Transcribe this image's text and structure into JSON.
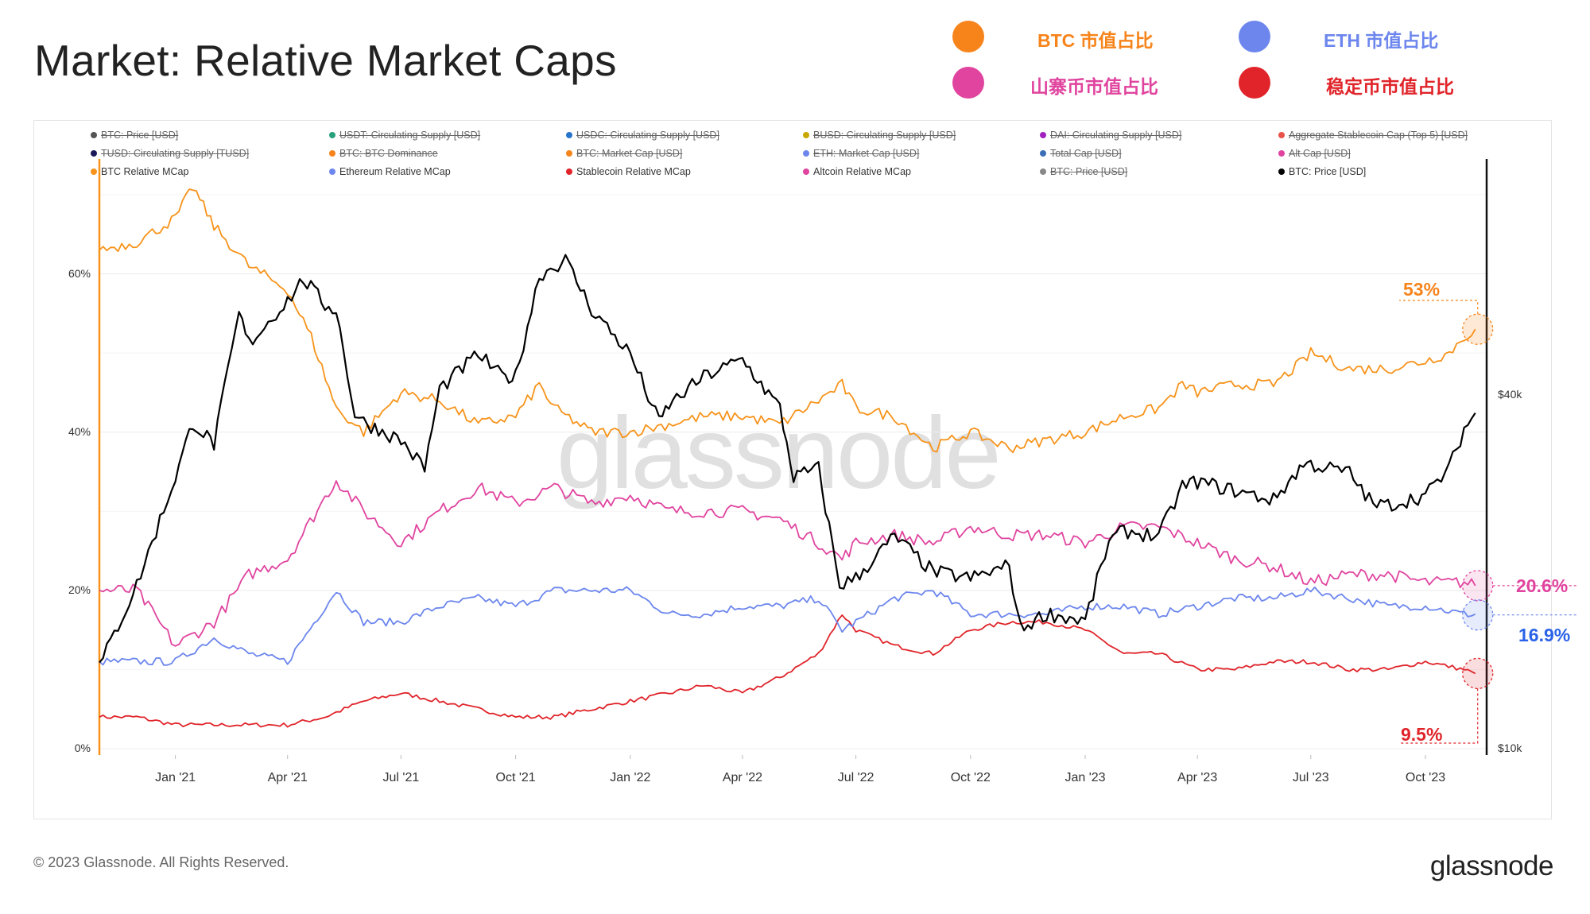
{
  "page": {
    "title": "Market: Relative Market Caps",
    "footer": "© 2023 Glassnode. All Rights Reserved.",
    "brand": "glassnode",
    "watermark": "glassnode"
  },
  "cn_legend": [
    {
      "label": "BTC 市值占比",
      "color": "#f7841b"
    },
    {
      "label": "ETH 市值占比",
      "color": "#6c86ed"
    },
    {
      "label": "山寨币市值占比",
      "color": "#e0449f"
    },
    {
      "label": "稳定币市值占比",
      "color": "#e0242a"
    }
  ],
  "legend": [
    {
      "label": "BTC: Price [USD]",
      "color": "#555555",
      "enabled": false
    },
    {
      "label": "USDT: Circulating Supply [USD]",
      "color": "#26a17b",
      "enabled": false
    },
    {
      "label": "USDC: Circulating Supply [USD]",
      "color": "#2775ca",
      "enabled": false
    },
    {
      "label": "BUSD: Circulating Supply [USD]",
      "color": "#c8a800",
      "enabled": false
    },
    {
      "label": "DAI: Circulating Supply [USD]",
      "color": "#a020c0",
      "enabled": false
    },
    {
      "label": "Aggregate Stablecoin Cap (Top 5) [USD]",
      "color": "#e8524a",
      "enabled": false
    },
    {
      "label": "TUSD: Circulating Supply [TUSD]",
      "color": "#1a1a5a",
      "enabled": false
    },
    {
      "label": "BTC: BTC Dominance",
      "color": "#f7841b",
      "enabled": false
    },
    {
      "label": "BTC: Market Cap [USD]",
      "color": "#f7841b",
      "enabled": false
    },
    {
      "label": "ETH: Market Cap [USD]",
      "color": "#6c86ed",
      "enabled": false
    },
    {
      "label": "Total Cap [USD]",
      "color": "#3a6fb7",
      "enabled": false
    },
    {
      "label": "Alt Cap [USD]",
      "color": "#e0449f",
      "enabled": false
    },
    {
      "label": "BTC Relative MCap",
      "color": "#f7931a",
      "enabled": true
    },
    {
      "label": "Ethereum Relative MCap",
      "color": "#6c86ed",
      "enabled": true
    },
    {
      "label": "Stablecoin Relative MCap",
      "color": "#e0242a",
      "enabled": true
    },
    {
      "label": "Altcoin Relative MCap",
      "color": "#e0449f",
      "enabled": true
    },
    {
      "label": "BTC: Price [USD]",
      "color": "#888888",
      "enabled": false
    },
    {
      "label": "BTC: Price [USD]",
      "color": "#000000",
      "enabled": true
    }
  ],
  "chart_data": {
    "type": "line",
    "x_tick_labels": [
      "Jan '21",
      "Apr '21",
      "Jul '21",
      "Oct '21",
      "Jan '22",
      "Apr '22",
      "Jul '22",
      "Oct '22",
      "Jan '23",
      "Apr '23",
      "Jul '23",
      "Oct '23"
    ],
    "y_tick_labels": [
      "0%",
      "20%",
      "40%",
      "60%"
    ],
    "ylim": [
      0,
      70
    ],
    "y2_tick_labels": [
      "$10k",
      "$40k"
    ],
    "y2_scale": "log",
    "y2lim": [
      10000,
      90000
    ],
    "grid": true,
    "legend_position": "top",
    "x_start": "2020-11-01",
    "series": [
      {
        "name": "BTC Relative MCap",
        "color": "#f7931a",
        "unit": "%",
        "x": [
          "2020-11-01",
          "2020-12-01",
          "2021-01-01",
          "2021-01-15",
          "2021-02-01",
          "2021-03-01",
          "2021-04-01",
          "2021-04-20",
          "2021-05-10",
          "2021-06-01",
          "2021-07-01",
          "2021-08-01",
          "2021-09-01",
          "2021-10-01",
          "2021-10-20",
          "2021-11-01",
          "2021-12-01",
          "2022-01-01",
          "2022-02-01",
          "2022-03-01",
          "2022-04-01",
          "2022-05-01",
          "2022-06-01",
          "2022-06-20",
          "2022-07-01",
          "2022-08-01",
          "2022-09-01",
          "2022-10-01",
          "2022-11-01",
          "2022-12-01",
          "2023-01-01",
          "2023-02-01",
          "2023-03-01",
          "2023-03-20",
          "2023-04-01",
          "2023-05-01",
          "2023-06-01",
          "2023-06-25",
          "2023-07-01",
          "2023-08-01",
          "2023-09-01",
          "2023-10-01",
          "2023-10-20",
          "2023-11-01",
          "2023-11-10"
        ],
        "y": [
          63,
          64,
          67,
          71,
          66,
          61,
          58,
          52,
          43,
          40,
          45,
          44,
          41,
          42,
          46,
          43,
          40,
          40,
          41,
          42,
          42,
          41,
          44,
          46,
          43,
          42,
          38,
          40,
          38,
          39,
          40,
          42,
          43,
          46,
          45,
          46,
          46,
          49,
          50,
          48,
          48,
          49,
          50,
          52,
          53
        ]
      },
      {
        "name": "Ethereum Relative MCap",
        "color": "#6c86ed",
        "unit": "%",
        "x": [
          "2020-11-01",
          "2020-12-01",
          "2021-01-01",
          "2021-02-01",
          "2021-03-01",
          "2021-04-01",
          "2021-05-10",
          "2021-06-01",
          "2021-07-01",
          "2021-08-01",
          "2021-09-01",
          "2021-10-01",
          "2021-11-01",
          "2021-12-01",
          "2022-01-01",
          "2022-02-01",
          "2022-03-01",
          "2022-04-01",
          "2022-05-01",
          "2022-06-01",
          "2022-06-20",
          "2022-07-01",
          "2022-08-01",
          "2022-09-01",
          "2022-10-01",
          "2022-11-01",
          "2022-12-01",
          "2023-01-01",
          "2023-02-01",
          "2023-03-01",
          "2023-04-01",
          "2023-05-01",
          "2023-06-01",
          "2023-07-01",
          "2023-08-01",
          "2023-09-01",
          "2023-10-01",
          "2023-11-01",
          "2023-11-10"
        ],
        "y": [
          11,
          11,
          11,
          14,
          12,
          11,
          20,
          16,
          16,
          18,
          19,
          18,
          20,
          20,
          20,
          17,
          17,
          18,
          18,
          19,
          15,
          16,
          19,
          20,
          17,
          17,
          17,
          18,
          18,
          17,
          18,
          19,
          19,
          20,
          19,
          18,
          18,
          17,
          17
        ]
      },
      {
        "name": "Stablecoin Relative MCap",
        "color": "#e0242a",
        "unit": "%",
        "x": [
          "2020-11-01",
          "2020-12-01",
          "2021-01-01",
          "2021-02-01",
          "2021-03-01",
          "2021-04-01",
          "2021-05-01",
          "2021-06-01",
          "2021-07-01",
          "2021-08-01",
          "2021-09-01",
          "2021-10-01",
          "2021-11-01",
          "2021-12-01",
          "2022-01-01",
          "2022-02-01",
          "2022-03-01",
          "2022-04-01",
          "2022-05-01",
          "2022-06-01",
          "2022-06-20",
          "2022-07-01",
          "2022-08-01",
          "2022-09-01",
          "2022-10-01",
          "2022-11-01",
          "2022-12-01",
          "2023-01-01",
          "2023-02-01",
          "2023-03-01",
          "2023-04-01",
          "2023-05-01",
          "2023-06-01",
          "2023-07-01",
          "2023-08-01",
          "2023-09-01",
          "2023-10-01",
          "2023-11-01",
          "2023-11-10"
        ],
        "y": [
          4,
          4,
          3,
          3,
          3,
          3,
          4,
          6,
          7,
          6,
          5,
          4,
          4,
          5,
          6,
          7,
          8,
          7,
          9,
          12,
          17,
          15,
          13,
          12,
          15,
          16,
          16,
          15,
          12,
          12,
          10,
          10,
          11,
          11,
          10,
          10,
          11,
          10,
          9.5
        ]
      },
      {
        "name": "Altcoin Relative MCap",
        "color": "#e0449f",
        "unit": "%",
        "x": [
          "2020-11-01",
          "2020-12-01",
          "2021-01-01",
          "2021-02-01",
          "2021-03-01",
          "2021-04-01",
          "2021-05-10",
          "2021-06-01",
          "2021-07-01",
          "2021-08-01",
          "2021-09-01",
          "2021-10-01",
          "2021-11-01",
          "2021-12-01",
          "2022-01-01",
          "2022-02-01",
          "2022-03-01",
          "2022-04-01",
          "2022-05-01",
          "2022-06-01",
          "2022-06-20",
          "2022-07-01",
          "2022-08-01",
          "2022-09-01",
          "2022-10-01",
          "2022-11-01",
          "2022-12-01",
          "2023-01-01",
          "2023-02-01",
          "2023-03-01",
          "2023-04-01",
          "2023-05-01",
          "2023-06-01",
          "2023-07-01",
          "2023-08-01",
          "2023-09-01",
          "2023-10-01",
          "2023-11-01",
          "2023-11-10"
        ],
        "y": [
          20,
          20,
          13,
          16,
          22,
          24,
          34,
          30,
          26,
          30,
          33,
          31,
          33,
          31,
          32,
          30,
          30,
          30,
          29,
          26,
          24,
          26,
          27,
          26,
          28,
          27,
          27,
          26,
          28,
          28,
          26,
          24,
          23,
          21,
          22,
          22,
          21,
          21,
          20.6
        ]
      },
      {
        "name": "BTC: Price [USD]",
        "color": "#000000",
        "unit": "USD",
        "axis": "right",
        "x": [
          "2020-11-01",
          "2020-12-01",
          "2021-01-01",
          "2021-01-15",
          "2021-02-01",
          "2021-02-21",
          "2021-03-01",
          "2021-04-01",
          "2021-04-14",
          "2021-05-01",
          "2021-05-10",
          "2021-05-25",
          "2021-06-01",
          "2021-07-01",
          "2021-07-20",
          "2021-08-01",
          "2021-09-01",
          "2021-09-20",
          "2021-10-01",
          "2021-10-20",
          "2021-11-10",
          "2021-12-01",
          "2022-01-01",
          "2022-01-24",
          "2022-02-01",
          "2022-03-01",
          "2022-04-01",
          "2022-05-01",
          "2022-05-12",
          "2022-06-01",
          "2022-06-18",
          "2022-07-01",
          "2022-08-01",
          "2022-09-01",
          "2022-10-01",
          "2022-11-01",
          "2022-11-10",
          "2022-12-01",
          "2023-01-01",
          "2023-01-20",
          "2023-02-01",
          "2023-03-01",
          "2023-03-20",
          "2023-04-01",
          "2023-05-01",
          "2023-06-01",
          "2023-06-25",
          "2023-07-01",
          "2023-08-01",
          "2023-08-20",
          "2023-09-01",
          "2023-10-01",
          "2023-10-20",
          "2023-11-01",
          "2023-11-10"
        ],
        "y": [
          13800,
          19000,
          29000,
          36000,
          33000,
          55000,
          49000,
          58000,
          63000,
          57000,
          56000,
          37000,
          36000,
          33500,
          30000,
          41000,
          47000,
          43000,
          43000,
          64000,
          68000,
          56000,
          47000,
          36000,
          38500,
          43000,
          46000,
          38000,
          29000,
          30000,
          19000,
          19500,
          23000,
          20000,
          19500,
          20500,
          16000,
          17000,
          16500,
          22500,
          23500,
          23000,
          28000,
          28500,
          27500,
          26500,
          30500,
          30500,
          29500,
          26000,
          26000,
          27000,
          30000,
          35000,
          37300
        ]
      }
    ],
    "end_labels": [
      {
        "text": "53%",
        "color": "#f7841b",
        "value": 53
      },
      {
        "text": "20.6%",
        "color": "#e0449f",
        "value": 20.6
      },
      {
        "text": "16.9%",
        "color": "#2a62e8",
        "value": 16.9
      },
      {
        "text": "9.5%",
        "color": "#e0242a",
        "value": 9.5
      }
    ]
  }
}
